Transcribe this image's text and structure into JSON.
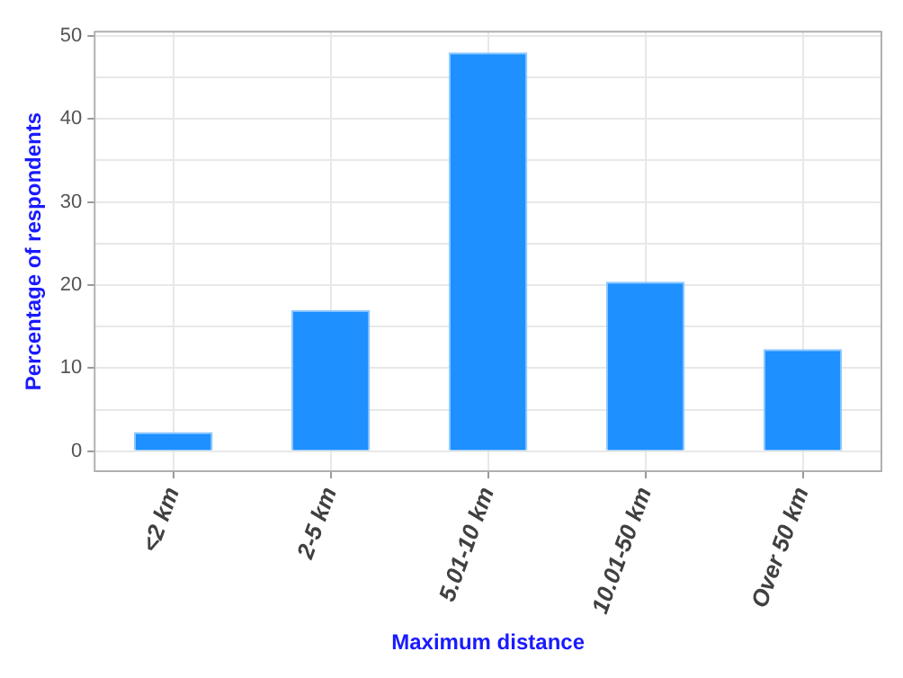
{
  "chart_data": {
    "type": "bar",
    "xlabel": "Maximum distance",
    "ylabel": "Percentage of respondents",
    "categories": [
      "<2 km",
      "2-5 km",
      "5.01-10 km",
      "10.01-50 km",
      "Over 50 km"
    ],
    "values": [
      2.3,
      17.0,
      48.0,
      20.4,
      12.3
    ],
    "color": "#1e90ff",
    "ylim": [
      -2.4,
      50.5
    ],
    "yticks": [
      0,
      {
        "value": 5,
        "label": null
      },
      10,
      {
        "value": 15,
        "label": null
      },
      20,
      {
        "value": 25,
        "label": null
      },
      30,
      {
        "value": 35,
        "label": null
      },
      40,
      {
        "value": 45,
        "label": null
      },
      50
    ],
    "grid": true
  }
}
